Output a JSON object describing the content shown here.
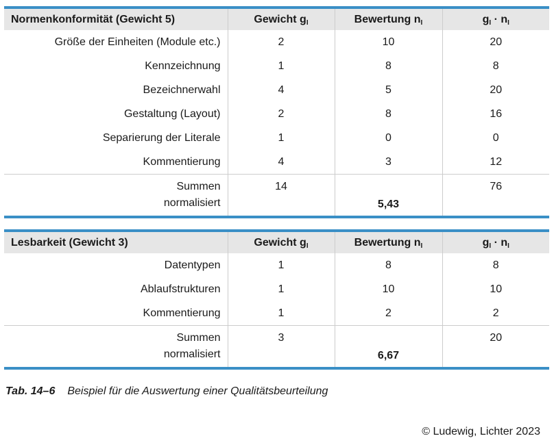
{
  "table1": {
    "title": "Normenkonformität (Gewicht 5)",
    "col_weight": "Gewicht g",
    "col_rating": "Bewertung n",
    "col_product_g": "g",
    "col_product_dot": " · n",
    "sub": "I",
    "rows": [
      {
        "label": "Größe der Einheiten (Module etc.)",
        "g": "2",
        "n": "10",
        "gn": "20"
      },
      {
        "label": "Kennzeichnung",
        "g": "1",
        "n": "8",
        "gn": "8"
      },
      {
        "label": "Bezeichnerwahl",
        "g": "4",
        "n": "5",
        "gn": "20"
      },
      {
        "label": "Gestaltung (Layout)",
        "g": "2",
        "n": "8",
        "gn": "16"
      },
      {
        "label": "Separierung der Literale",
        "g": "1",
        "n": "0",
        "gn": "0"
      },
      {
        "label": "Kommentierung",
        "g": "4",
        "n": "3",
        "gn": "12"
      }
    ],
    "sum_label": "Summen",
    "norm_label": "normalisiert",
    "sum_g": "14",
    "sum_gn": "76",
    "normalized": "5,43"
  },
  "table2": {
    "title": "Lesbarkeit (Gewicht 3)",
    "col_weight": "Gewicht g",
    "col_rating": "Bewertung n",
    "col_product_g": "g",
    "col_product_dot": " · n",
    "sub": "I",
    "rows": [
      {
        "label": "Datentypen",
        "g": "1",
        "n": "8",
        "gn": "8"
      },
      {
        "label": "Ablaufstrukturen",
        "g": "1",
        "n": "10",
        "gn": "10"
      },
      {
        "label": "Kommentierung",
        "g": "1",
        "n": "2",
        "gn": "2"
      }
    ],
    "sum_label": "Summen",
    "norm_label": "normalisiert",
    "sum_g": "3",
    "sum_gn": "20",
    "normalized": "6,67"
  },
  "caption": {
    "label": "Tab. 14–6",
    "text": "Beispiel für die Auswertung einer Qualitätsbeurteilung"
  },
  "copyright": "© Ludewig, Lichter 2023",
  "colors": {
    "accent": "#3a8fc6",
    "header_bg": "#e6e6e6",
    "grid": "#cccccc"
  }
}
